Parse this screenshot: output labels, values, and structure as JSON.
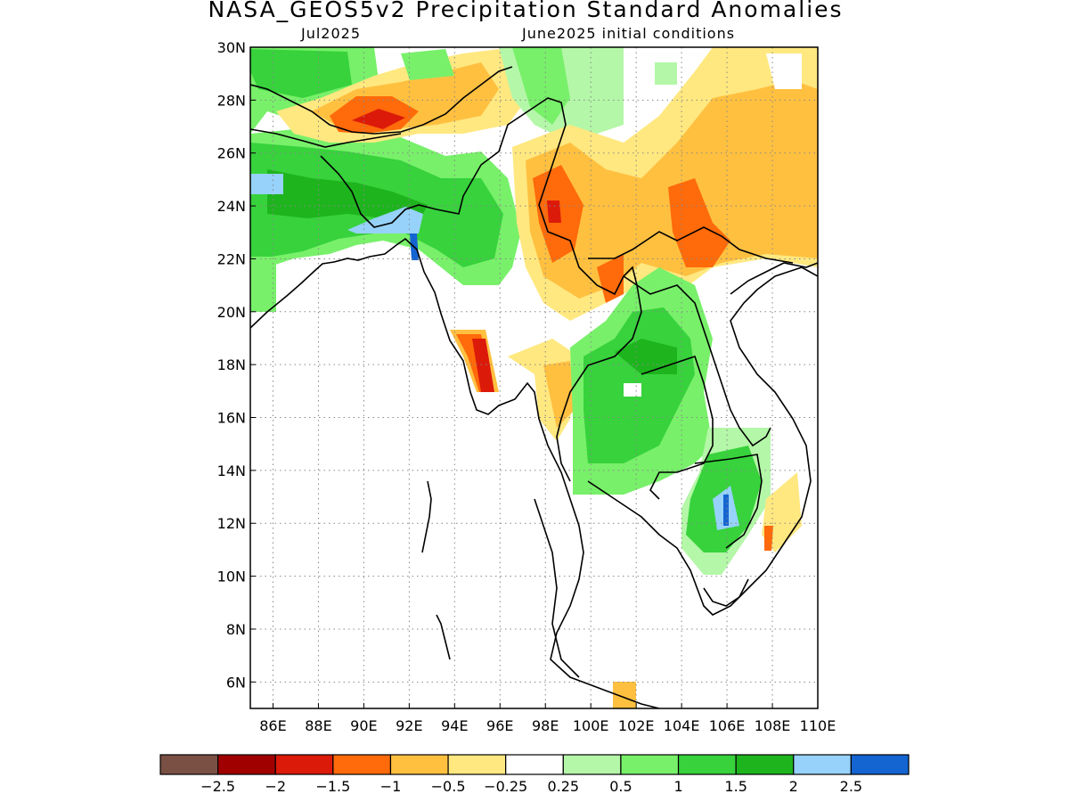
{
  "title": "NASA_GEOS5v2 Precipitation Standard Anomalies",
  "subtitle_left": "Jul2025",
  "subtitle_right": "June2025 initial conditions",
  "map": {
    "lon_range": [
      85,
      110
    ],
    "lat_range": [
      5,
      30
    ],
    "lon_ticks": [
      "86E",
      "88E",
      "90E",
      "92E",
      "94E",
      "96E",
      "98E",
      "100E",
      "102E",
      "104E",
      "106E",
      "108E",
      "110E"
    ],
    "lat_ticks": [
      "6N",
      "8N",
      "10N",
      "12N",
      "14N",
      "16N",
      "18N",
      "20N",
      "22N",
      "24N",
      "26N",
      "28N",
      "30N"
    ],
    "grid": true
  },
  "colorbar": {
    "colors": [
      "#7a5044",
      "#a00000",
      "#dc1a0a",
      "#ff6a0a",
      "#ffc040",
      "#ffe880",
      "#ffffff",
      "#b4f7a8",
      "#78f06a",
      "#37d23c",
      "#1eb41e",
      "#96d2fa",
      "#1464d2"
    ],
    "labels": [
      "−2.5",
      "−2",
      "−1.5",
      "−1",
      "−0.5",
      "−0.25",
      "0.25",
      "0.5",
      "1",
      "1.5",
      "2",
      "2.5"
    ]
  }
}
